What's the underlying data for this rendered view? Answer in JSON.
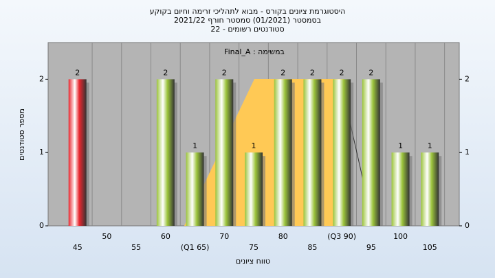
{
  "chart_data": {
    "type": "bar",
    "title": [
      "היסטוגרמת ציונים בקורס - מבוא לתהליכי זרימה וחיום בקוקע",
      "בסמסטר  (01/2021)  סמסטר חורף 2021/22",
      "סטודנטים רשומים - 22"
    ],
    "legend_text": "במשימה : Final_A",
    "x_label": "טווח ציונים",
    "y_label": "מספר סטודנטים",
    "categories": [
      "45",
      "50",
      "55",
      "60",
      "(Q1 65)",
      "70",
      "75",
      "80",
      "85",
      "(Q3 90)",
      "95",
      "100",
      "105"
    ],
    "values": [
      2,
      0,
      0,
      2,
      1,
      2,
      1,
      2,
      2,
      2,
      2,
      1,
      1
    ],
    "colors": [
      "#e8262e",
      "#9cc43c",
      "#9cc43c",
      "#9cc43c",
      "#9cc43c",
      "#9cc43c",
      "#9cc43c",
      "#9cc43c",
      "#9cc43c",
      "#9cc43c",
      "#9cc43c",
      "#9cc43c",
      "#9cc43c"
    ],
    "ylim": [
      0,
      2.5
    ],
    "yticks": [
      0,
      1,
      2
    ],
    "grid": true
  }
}
